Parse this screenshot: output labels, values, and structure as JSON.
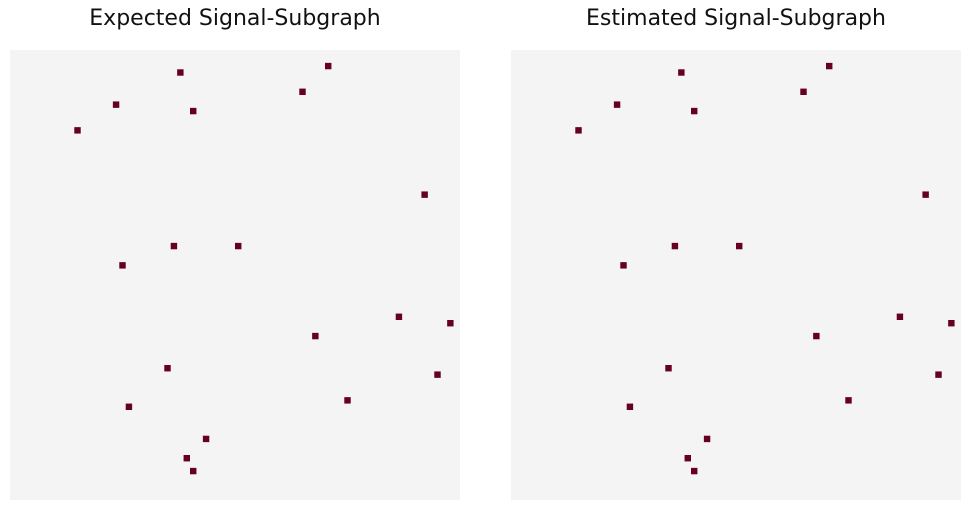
{
  "chart_data": [
    {
      "type": "heatmap",
      "title": "Expected Signal-Subgraph",
      "grid_size": 70,
      "background_color": "#f4f4f4",
      "cell_color": "#67001f",
      "cells": [
        [
          26,
          3
        ],
        [
          49,
          2
        ],
        [
          45,
          6
        ],
        [
          16,
          8
        ],
        [
          28,
          9
        ],
        [
          10,
          12
        ],
        [
          64,
          22
        ],
        [
          25,
          30
        ],
        [
          35,
          30
        ],
        [
          17,
          33
        ],
        [
          60,
          41
        ],
        [
          68,
          42
        ],
        [
          47,
          44
        ],
        [
          24,
          49
        ],
        [
          66,
          50
        ],
        [
          52,
          54
        ],
        [
          18,
          55
        ],
        [
          30,
          60
        ],
        [
          27,
          63
        ],
        [
          28,
          65
        ]
      ]
    },
    {
      "type": "heatmap",
      "title": "Estimated Signal-Subgraph",
      "grid_size": 70,
      "background_color": "#f4f4f4",
      "cell_color": "#67001f",
      "cells": [
        [
          26,
          3
        ],
        [
          49,
          2
        ],
        [
          45,
          6
        ],
        [
          16,
          8
        ],
        [
          28,
          9
        ],
        [
          10,
          12
        ],
        [
          64,
          22
        ],
        [
          25,
          30
        ],
        [
          35,
          30
        ],
        [
          17,
          33
        ],
        [
          60,
          41
        ],
        [
          68,
          42
        ],
        [
          47,
          44
        ],
        [
          24,
          49
        ],
        [
          66,
          50
        ],
        [
          52,
          54
        ],
        [
          18,
          55
        ],
        [
          30,
          60
        ],
        [
          27,
          63
        ],
        [
          28,
          65
        ]
      ]
    }
  ]
}
